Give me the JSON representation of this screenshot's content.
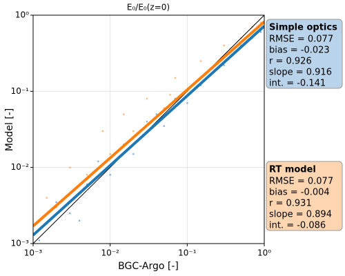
{
  "chart_data": {
    "type": "scatter",
    "title": "E₀/E₀(z=0)",
    "x_label": "BGC-Argo [-]",
    "y_label": "Model [-]",
    "log_x": true,
    "log_y": true,
    "grid": true,
    "xlim": [
      0.001,
      1
    ],
    "ylim": [
      0.001,
      1
    ],
    "xticks": [
      {
        "value": 0.001,
        "label": "10⁻³"
      },
      {
        "value": 0.01,
        "label": "10⁻²"
      },
      {
        "value": 0.1,
        "label": "10⁻¹"
      },
      {
        "value": 1,
        "label": "10⁰"
      }
    ],
    "yticks": [
      {
        "value": 0.001,
        "label": "10⁻³"
      },
      {
        "value": 0.01,
        "label": "10⁻²"
      },
      {
        "value": 0.1,
        "label": "10⁻¹"
      },
      {
        "value": 1,
        "label": "10⁰"
      }
    ],
    "reference_line": {
      "color": "#000000",
      "x": [
        0.001,
        1
      ],
      "y": [
        0.001,
        1
      ]
    },
    "series": [
      {
        "name": "Simple optics",
        "color": "#1f77b4",
        "box_color": "#b9d3ea",
        "x": [
          0.0012,
          0.002,
          0.003,
          0.005,
          0.007,
          0.01,
          0.015,
          0.02,
          0.03,
          0.05,
          0.07,
          0.1,
          0.15,
          0.2,
          0.3,
          0.5,
          0.7,
          0.9,
          0.004,
          0.04
        ],
        "y": [
          0.0011,
          0.0035,
          0.0025,
          0.006,
          0.012,
          0.008,
          0.02,
          0.015,
          0.04,
          0.035,
          0.08,
          0.07,
          0.12,
          0.2,
          0.22,
          0.4,
          0.5,
          0.6,
          0.002,
          0.05
        ],
        "fit_x": [
          0.001,
          1
        ],
        "fit_y": [
          0.00129,
          0.72
        ],
        "stats": [
          "RMSE = 0.077",
          "bias = -0.023",
          "r = 0.926",
          "slope = 0.916",
          "int. = -0.141"
        ]
      },
      {
        "name": "RT model",
        "color": "#ff7f0e",
        "box_color": "#fdd5b1",
        "x": [
          0.0015,
          0.002,
          0.003,
          0.005,
          0.008,
          0.01,
          0.015,
          0.02,
          0.03,
          0.05,
          0.07,
          0.1,
          0.15,
          0.2,
          0.3,
          0.5,
          0.7,
          0.9,
          0.004,
          0.06
        ],
        "y": [
          0.004,
          0.003,
          0.01,
          0.008,
          0.03,
          0.015,
          0.05,
          0.03,
          0.08,
          0.06,
          0.15,
          0.1,
          0.25,
          0.2,
          0.4,
          0.5,
          0.7,
          0.8,
          0.006,
          0.09
        ],
        "fit_x": [
          0.001,
          1
        ],
        "fit_y": [
          0.0017,
          0.82
        ],
        "stats": [
          "RMSE = 0.077",
          "bias = -0.004",
          "r = 0.931",
          "slope = 0.894",
          "int. = -0.086"
        ]
      }
    ]
  }
}
